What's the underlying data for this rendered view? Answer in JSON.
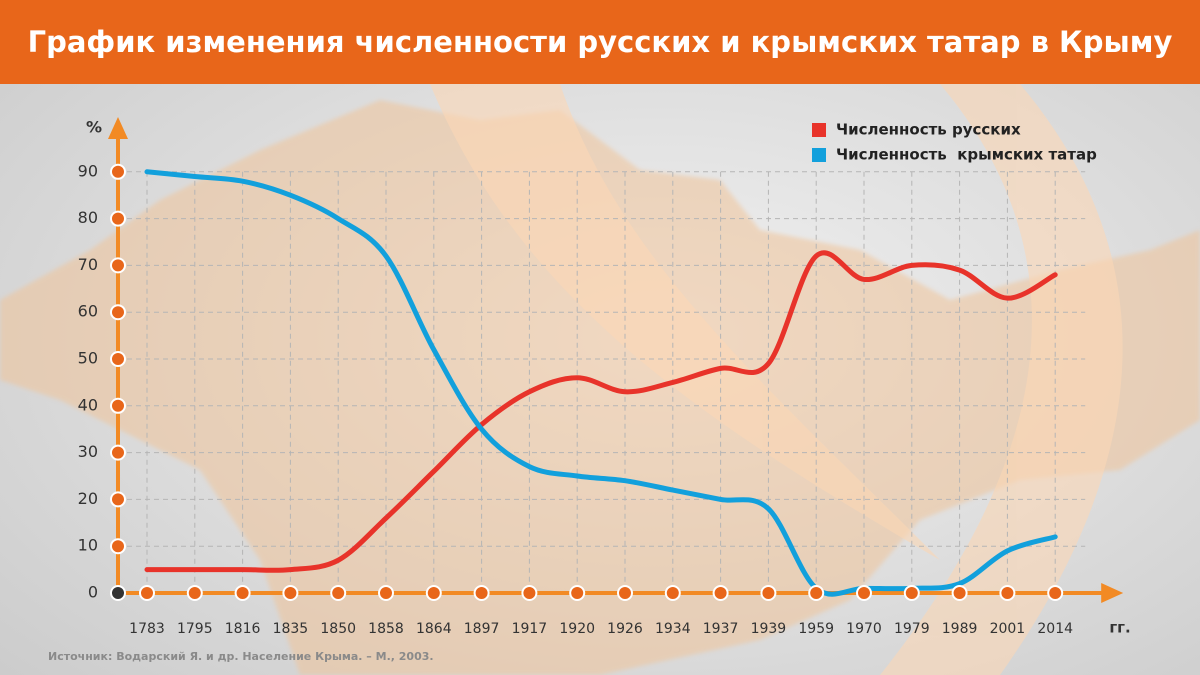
{
  "chart_data": {
    "type": "line",
    "title": "График изменения численности русских и крымских татар в Крыму",
    "y_axis_label": "%",
    "x_axis_label": "гг.",
    "source": "Источник: Водарский Я. и др. Население Крыма. – М., 2003.",
    "categories": [
      "1783",
      "1795",
      "1816",
      "1835",
      "1850",
      "1858",
      "1864",
      "1897",
      "1917",
      "1920",
      "1926",
      "1934",
      "1937",
      "1939",
      "1959",
      "1970",
      "1979",
      "1989",
      "2001",
      "2014"
    ],
    "series": [
      {
        "name": "Численность русских",
        "color": "#e8332a",
        "values": [
          5,
          5,
          5,
          5,
          7,
          16,
          26,
          36,
          43,
          46,
          43,
          45,
          48,
          49,
          72,
          67,
          70,
          69,
          63,
          68
        ]
      },
      {
        "name": "Численность  крымских татар",
        "color": "#12a0dc",
        "values": [
          90,
          89,
          88,
          85,
          80,
          72,
          52,
          35,
          27,
          25,
          24,
          22,
          20,
          18,
          1,
          1,
          1,
          2,
          9,
          12
        ]
      }
    ],
    "ylim": [
      0,
      100
    ],
    "yticks": [
      0,
      10,
      20,
      30,
      40,
      50,
      60,
      70,
      80,
      90
    ],
    "grid": true,
    "legend": "top-right",
    "axis_color": "#f28a24"
  }
}
